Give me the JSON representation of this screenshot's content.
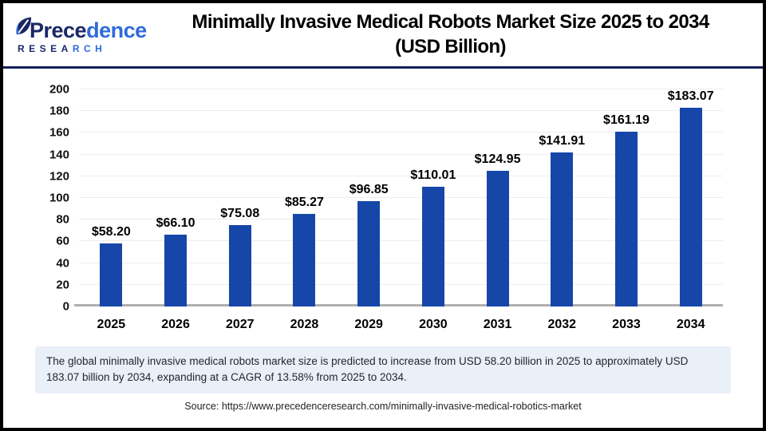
{
  "logo": {
    "word_part1": "Prece",
    "word_part2": "dence",
    "sub_part1": "RESEA",
    "sub_part2": "RCH"
  },
  "header": {
    "title_line1": "Minimally Invasive Medical Robots Market Size 2025 to 2034",
    "title_line2": "(USD Billion)"
  },
  "chart_data": {
    "type": "bar",
    "title": "Minimally Invasive Medical Robots Market Size 2025 to 2034 (USD Billion)",
    "categories": [
      "2025",
      "2026",
      "2027",
      "2028",
      "2029",
      "2030",
      "2031",
      "2032",
      "2033",
      "2034"
    ],
    "values": [
      58.2,
      66.1,
      75.08,
      85.27,
      96.85,
      110.01,
      124.95,
      141.91,
      161.19,
      183.07
    ],
    "value_labels": [
      "$58.20",
      "$66.10",
      "$75.08",
      "$85.27",
      "$96.85",
      "$110.01",
      "$124.95",
      "$141.91",
      "$161.19",
      "$183.07"
    ],
    "xlabel": "",
    "ylabel": "",
    "ylim": [
      0,
      200
    ],
    "yticks": [
      0,
      20,
      40,
      60,
      80,
      100,
      120,
      140,
      160,
      180,
      200
    ],
    "grid": true,
    "legend_position": "none",
    "bar_color": "#1646a8"
  },
  "summary": {
    "text": "The global minimally invasive medical robots market size is predicted to increase from USD 58.20 billion in 2025 to approximately USD 183.07 billion by 2034, expanding at a CAGR of 13.58% from 2025 to 2034."
  },
  "source": {
    "text": "Source: https://www.precedenceresearch.com/minimally-invasive-medical-robotics-market"
  },
  "colors": {
    "bar": "#1646a8",
    "logo_navy": "#1b2766",
    "logo_blue": "#2e6bdb",
    "header_rule": "#16225c",
    "summary_bg": "#e9f0f8",
    "gridline": "#ededed",
    "baseline": "#b0b0b0"
  }
}
